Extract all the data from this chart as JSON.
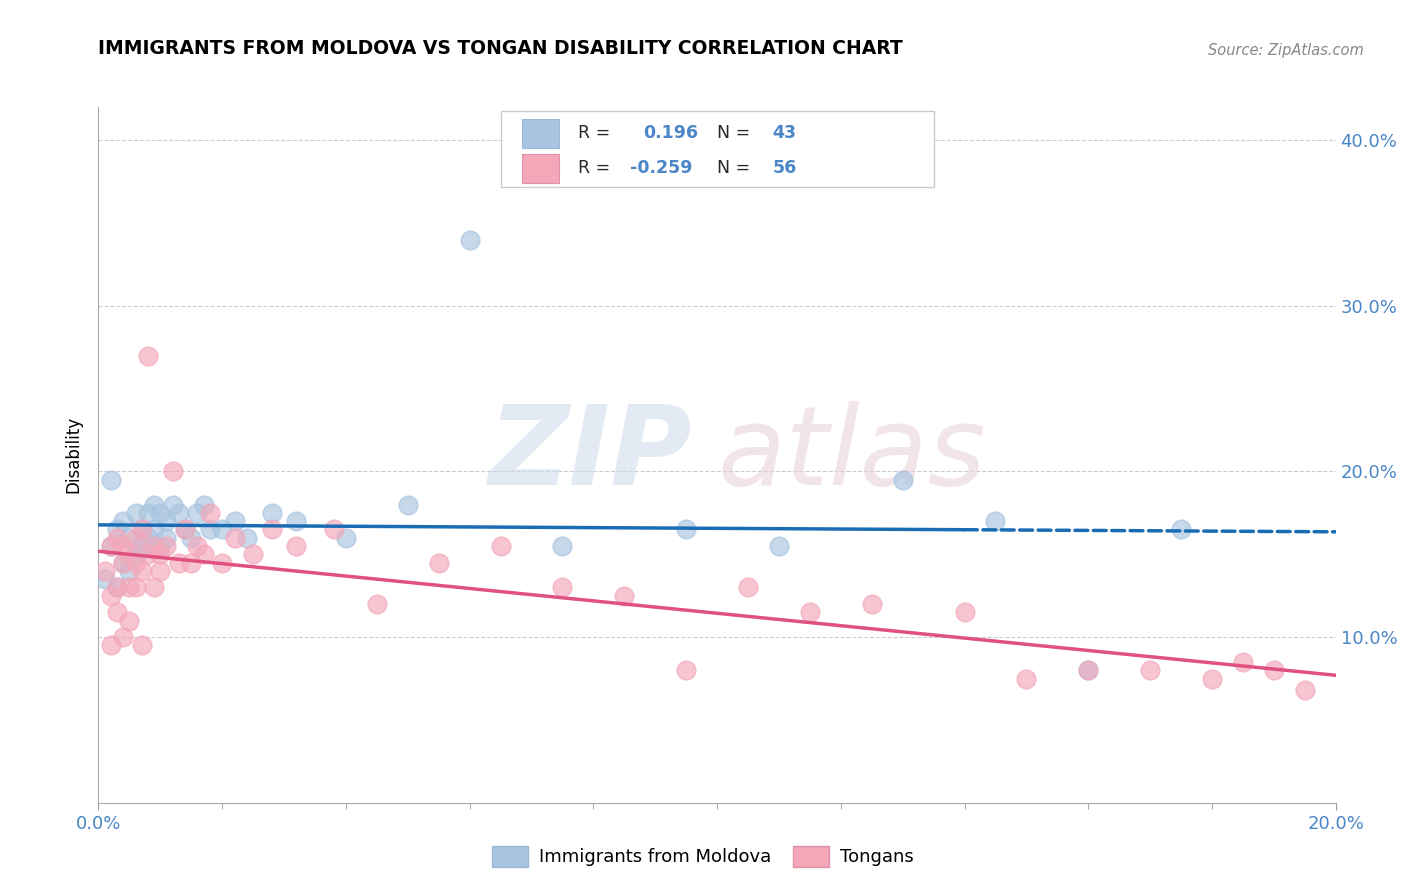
{
  "title": "IMMIGRANTS FROM MOLDOVA VS TONGAN DISABILITY CORRELATION CHART",
  "source": "Source: ZipAtlas.com",
  "ylabel": "Disability",
  "xlim": [
    0.0,
    0.2
  ],
  "ylim": [
    0.0,
    0.42
  ],
  "ytick_vals": [
    0.1,
    0.2,
    0.3,
    0.4
  ],
  "ytick_labels": [
    "10.0%",
    "20.0%",
    "30.0%",
    "40.0%"
  ],
  "moldova_R": "0.196",
  "moldova_N": "43",
  "tongan_R": "-0.259",
  "tongan_N": "56",
  "moldova_color": "#a8c4e0",
  "tongan_color": "#f4a7b9",
  "moldova_line_color": "#1a6db5",
  "tongan_line_color": "#e05080",
  "background_color": "#ffffff",
  "grid_color": "#cccccc",
  "moldova_scatter_x": [
    0.001,
    0.002,
    0.002,
    0.003,
    0.003,
    0.004,
    0.004,
    0.005,
    0.005,
    0.006,
    0.006,
    0.007,
    0.007,
    0.008,
    0.008,
    0.009,
    0.009,
    0.01,
    0.01,
    0.011,
    0.011,
    0.012,
    0.013,
    0.014,
    0.015,
    0.016,
    0.017,
    0.018,
    0.02,
    0.022,
    0.024,
    0.028,
    0.032,
    0.04,
    0.05,
    0.06,
    0.075,
    0.095,
    0.11,
    0.13,
    0.145,
    0.16,
    0.175
  ],
  "moldova_scatter_y": [
    0.135,
    0.155,
    0.195,
    0.13,
    0.165,
    0.145,
    0.17,
    0.14,
    0.16,
    0.175,
    0.15,
    0.165,
    0.155,
    0.175,
    0.16,
    0.18,
    0.165,
    0.175,
    0.155,
    0.17,
    0.16,
    0.18,
    0.175,
    0.165,
    0.16,
    0.175,
    0.18,
    0.165,
    0.165,
    0.17,
    0.16,
    0.175,
    0.17,
    0.16,
    0.18,
    0.34,
    0.155,
    0.165,
    0.155,
    0.195,
    0.17,
    0.08,
    0.165
  ],
  "tongan_scatter_x": [
    0.001,
    0.002,
    0.002,
    0.003,
    0.003,
    0.004,
    0.004,
    0.005,
    0.005,
    0.006,
    0.006,
    0.007,
    0.007,
    0.008,
    0.008,
    0.009,
    0.009,
    0.01,
    0.01,
    0.011,
    0.012,
    0.013,
    0.014,
    0.015,
    0.016,
    0.017,
    0.018,
    0.02,
    0.022,
    0.025,
    0.028,
    0.032,
    0.038,
    0.045,
    0.055,
    0.065,
    0.075,
    0.085,
    0.095,
    0.105,
    0.115,
    0.125,
    0.14,
    0.15,
    0.16,
    0.17,
    0.18,
    0.185,
    0.19,
    0.195,
    0.002,
    0.003,
    0.004,
    0.005,
    0.006,
    0.007
  ],
  "tongan_scatter_y": [
    0.14,
    0.125,
    0.155,
    0.13,
    0.16,
    0.145,
    0.155,
    0.13,
    0.15,
    0.16,
    0.145,
    0.165,
    0.14,
    0.27,
    0.15,
    0.155,
    0.13,
    0.15,
    0.14,
    0.155,
    0.2,
    0.145,
    0.165,
    0.145,
    0.155,
    0.15,
    0.175,
    0.145,
    0.16,
    0.15,
    0.165,
    0.155,
    0.165,
    0.12,
    0.145,
    0.155,
    0.13,
    0.125,
    0.08,
    0.13,
    0.115,
    0.12,
    0.115,
    0.075,
    0.08,
    0.08,
    0.075,
    0.085,
    0.08,
    0.068,
    0.095,
    0.115,
    0.1,
    0.11,
    0.13,
    0.095
  ]
}
